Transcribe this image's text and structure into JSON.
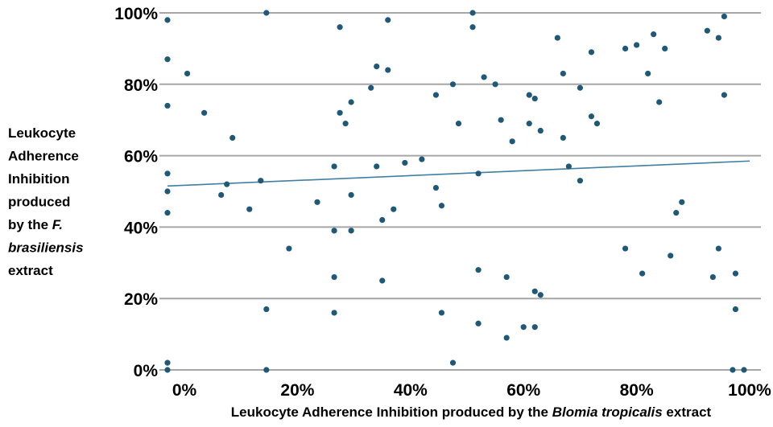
{
  "chart_data": {
    "type": "scatter",
    "xlabel": {
      "runs": [
        {
          "text": "Leukocyte Adherence Inhibition produced by the ",
          "italic": false
        },
        {
          "text": "Blomia tropicalis",
          "italic": true
        },
        {
          "text": " extract",
          "italic": false
        }
      ]
    },
    "ylabel": {
      "lines": [
        [
          {
            "text": "Leukocyte",
            "italic": false
          }
        ],
        [
          {
            "text": "Adherence",
            "italic": false
          }
        ],
        [
          {
            "text": "Inhibition",
            "italic": false
          }
        ],
        [
          {
            "text": "produced",
            "italic": false
          }
        ],
        [
          {
            "text": "by the ",
            "italic": false
          },
          {
            "text": "F.",
            "italic": true
          }
        ],
        [
          {
            "text": "brasiliensis",
            "italic": true
          }
        ],
        [
          {
            "text": "extract",
            "italic": false
          }
        ]
      ]
    },
    "xlim": [
      -3,
      100
    ],
    "ylim": [
      0,
      100
    ],
    "x_ticks": [
      0,
      20,
      40,
      60,
      80,
      100
    ],
    "x_tick_labels": [
      "0%",
      "20%",
      "40%",
      "60%",
      "80%",
      "100%"
    ],
    "y_ticks": [
      0,
      20,
      40,
      60,
      80,
      100
    ],
    "y_tick_labels": [
      "0%",
      "20%",
      "40%",
      "60%",
      "80%",
      "100%"
    ],
    "grid": {
      "horizontal": true,
      "vertical": false
    },
    "colors": {
      "point": "#1f5977",
      "trendline": "#3f7fa3",
      "grid": "#a6a6a6",
      "text": "#000000"
    },
    "trendline": {
      "x": [
        -3,
        100
      ],
      "y": [
        51.5,
        58.5
      ]
    },
    "points": [
      {
        "x": -3,
        "y": 98
      },
      {
        "x": -3,
        "y": 87
      },
      {
        "x": -3,
        "y": 74
      },
      {
        "x": -3,
        "y": 55
      },
      {
        "x": -3,
        "y": 50
      },
      {
        "x": -3,
        "y": 44
      },
      {
        "x": -3,
        "y": 2
      },
      {
        "x": -3,
        "y": 0
      },
      {
        "x": 0.5,
        "y": 83
      },
      {
        "x": 3.5,
        "y": 72
      },
      {
        "x": 6.5,
        "y": 49
      },
      {
        "x": 7.5,
        "y": 52
      },
      {
        "x": 8.5,
        "y": 65
      },
      {
        "x": 11.5,
        "y": 45
      },
      {
        "x": 13.5,
        "y": 53
      },
      {
        "x": 14.5,
        "y": 100
      },
      {
        "x": 14.5,
        "y": 17
      },
      {
        "x": 14.5,
        "y": 0
      },
      {
        "x": 18.5,
        "y": 34
      },
      {
        "x": 23.5,
        "y": 47
      },
      {
        "x": 26.5,
        "y": 57
      },
      {
        "x": 26.5,
        "y": 39
      },
      {
        "x": 26.5,
        "y": 26
      },
      {
        "x": 26.5,
        "y": 16
      },
      {
        "x": 27.5,
        "y": 96
      },
      {
        "x": 27.5,
        "y": 72
      },
      {
        "x": 28.5,
        "y": 69
      },
      {
        "x": 29.5,
        "y": 75
      },
      {
        "x": 29.5,
        "y": 49
      },
      {
        "x": 29.5,
        "y": 39
      },
      {
        "x": 33,
        "y": 79
      },
      {
        "x": 34,
        "y": 85
      },
      {
        "x": 34,
        "y": 57
      },
      {
        "x": 35,
        "y": 42
      },
      {
        "x": 35,
        "y": 25
      },
      {
        "x": 36,
        "y": 98
      },
      {
        "x": 36,
        "y": 84
      },
      {
        "x": 37,
        "y": 45
      },
      {
        "x": 39,
        "y": 58
      },
      {
        "x": 42,
        "y": 59
      },
      {
        "x": 44.5,
        "y": 77
      },
      {
        "x": 44.5,
        "y": 51
      },
      {
        "x": 45.5,
        "y": 46
      },
      {
        "x": 45.5,
        "y": 16
      },
      {
        "x": 47.5,
        "y": 80
      },
      {
        "x": 47.5,
        "y": 2
      },
      {
        "x": 48.5,
        "y": 69
      },
      {
        "x": 51,
        "y": 100
      },
      {
        "x": 51,
        "y": 96
      },
      {
        "x": 52,
        "y": 55
      },
      {
        "x": 52,
        "y": 28
      },
      {
        "x": 52,
        "y": 13
      },
      {
        "x": 53,
        "y": 82
      },
      {
        "x": 55,
        "y": 80
      },
      {
        "x": 56,
        "y": 70
      },
      {
        "x": 57,
        "y": 26
      },
      {
        "x": 57,
        "y": 9
      },
      {
        "x": 58,
        "y": 64
      },
      {
        "x": 60,
        "y": 12
      },
      {
        "x": 61,
        "y": 77
      },
      {
        "x": 61,
        "y": 69
      },
      {
        "x": 62,
        "y": 76
      },
      {
        "x": 62,
        "y": 22
      },
      {
        "x": 62,
        "y": 12
      },
      {
        "x": 63,
        "y": 67
      },
      {
        "x": 63,
        "y": 21
      },
      {
        "x": 66,
        "y": 93
      },
      {
        "x": 67,
        "y": 83
      },
      {
        "x": 67,
        "y": 65
      },
      {
        "x": 68,
        "y": 57
      },
      {
        "x": 70,
        "y": 79
      },
      {
        "x": 70,
        "y": 53
      },
      {
        "x": 72,
        "y": 89
      },
      {
        "x": 72,
        "y": 71
      },
      {
        "x": 73,
        "y": 69
      },
      {
        "x": 78,
        "y": 90
      },
      {
        "x": 78,
        "y": 34
      },
      {
        "x": 80,
        "y": 91
      },
      {
        "x": 81,
        "y": 27
      },
      {
        "x": 82,
        "y": 83
      },
      {
        "x": 83,
        "y": 94
      },
      {
        "x": 84,
        "y": 75
      },
      {
        "x": 85,
        "y": 90
      },
      {
        "x": 86,
        "y": 32
      },
      {
        "x": 87,
        "y": 44
      },
      {
        "x": 88,
        "y": 47
      },
      {
        "x": 92.5,
        "y": 95
      },
      {
        "x": 93.5,
        "y": 26
      },
      {
        "x": 94.5,
        "y": 93
      },
      {
        "x": 94.5,
        "y": 34
      },
      {
        "x": 95.5,
        "y": 99
      },
      {
        "x": 95.5,
        "y": 77
      },
      {
        "x": 97,
        "y": 0
      },
      {
        "x": 97.5,
        "y": 27
      },
      {
        "x": 97.5,
        "y": 17
      },
      {
        "x": 99,
        "y": 0
      }
    ]
  }
}
